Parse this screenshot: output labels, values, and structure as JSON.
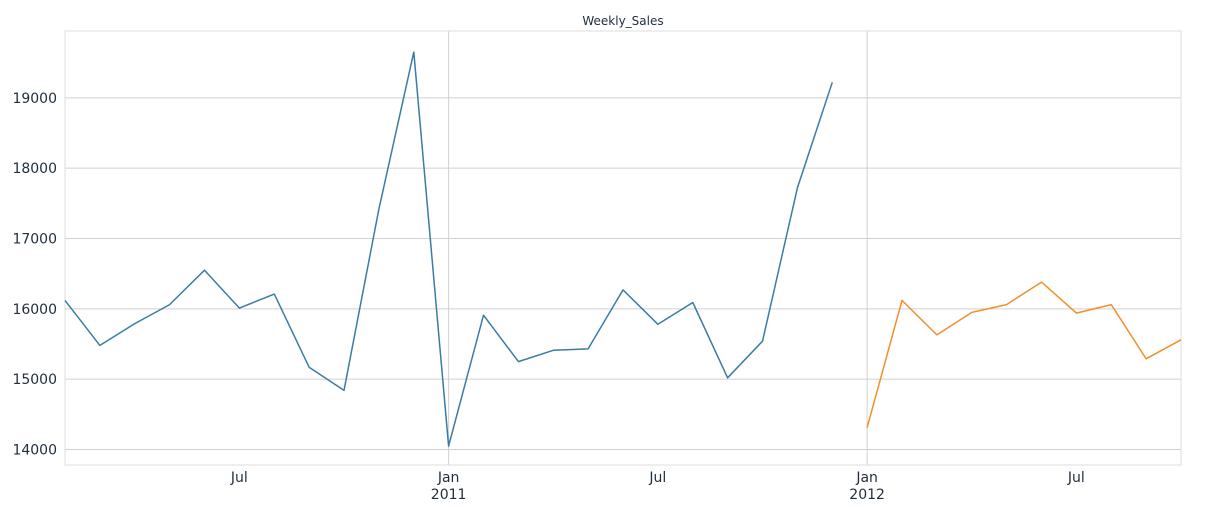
{
  "chart_data": {
    "type": "line",
    "title": "Weekly_Sales",
    "xlabel": "",
    "ylabel": "",
    "x_range": [
      "2010-02",
      "2012-10"
    ],
    "ylim": [
      13780,
      19950
    ],
    "grid": true,
    "legend": "none",
    "y_ticks": [
      14000,
      15000,
      16000,
      17000,
      18000,
      19000
    ],
    "x_ticks": [
      {
        "date": "2010-07",
        "label": "Jul",
        "sublabel": ""
      },
      {
        "date": "2011-01",
        "label": "Jan",
        "sublabel": "2011"
      },
      {
        "date": "2011-07",
        "label": "Jul",
        "sublabel": ""
      },
      {
        "date": "2012-01",
        "label": "Jan",
        "sublabel": "2012"
      },
      {
        "date": "2012-07",
        "label": "Jul",
        "sublabel": ""
      }
    ],
    "series": [
      {
        "color": "#3a7ca5",
        "points": [
          {
            "x": "2010-02",
            "y": 16120
          },
          {
            "x": "2010-03",
            "y": 15480
          },
          {
            "x": "2010-04",
            "y": 15790
          },
          {
            "x": "2010-05",
            "y": 16060
          },
          {
            "x": "2010-06",
            "y": 16550
          },
          {
            "x": "2010-07",
            "y": 16010
          },
          {
            "x": "2010-08",
            "y": 16210
          },
          {
            "x": "2010-09",
            "y": 15170
          },
          {
            "x": "2010-10",
            "y": 14840
          },
          {
            "x": "2010-11",
            "y": 17420
          },
          {
            "x": "2010-12",
            "y": 19650
          },
          {
            "x": "2011-01",
            "y": 14050
          },
          {
            "x": "2011-02",
            "y": 15910
          },
          {
            "x": "2011-03",
            "y": 15250
          },
          {
            "x": "2011-04",
            "y": 15410
          },
          {
            "x": "2011-05",
            "y": 15430
          },
          {
            "x": "2011-06",
            "y": 16270
          },
          {
            "x": "2011-07",
            "y": 15780
          },
          {
            "x": "2011-08",
            "y": 16090
          },
          {
            "x": "2011-09",
            "y": 15020
          },
          {
            "x": "2011-10",
            "y": 15540
          },
          {
            "x": "2011-11",
            "y": 17720
          },
          {
            "x": "2011-12",
            "y": 19220
          }
        ]
      },
      {
        "color": "#f28e2b",
        "points": [
          {
            "x": "2012-01",
            "y": 14310
          },
          {
            "x": "2012-02",
            "y": 16120
          },
          {
            "x": "2012-03",
            "y": 15630
          },
          {
            "x": "2012-04",
            "y": 15950
          },
          {
            "x": "2012-05",
            "y": 16060
          },
          {
            "x": "2012-06",
            "y": 16380
          },
          {
            "x": "2012-07",
            "y": 15940
          },
          {
            "x": "2012-08",
            "y": 16060
          },
          {
            "x": "2012-09",
            "y": 15290
          },
          {
            "x": "2012-10",
            "y": 15560
          }
        ]
      }
    ]
  }
}
